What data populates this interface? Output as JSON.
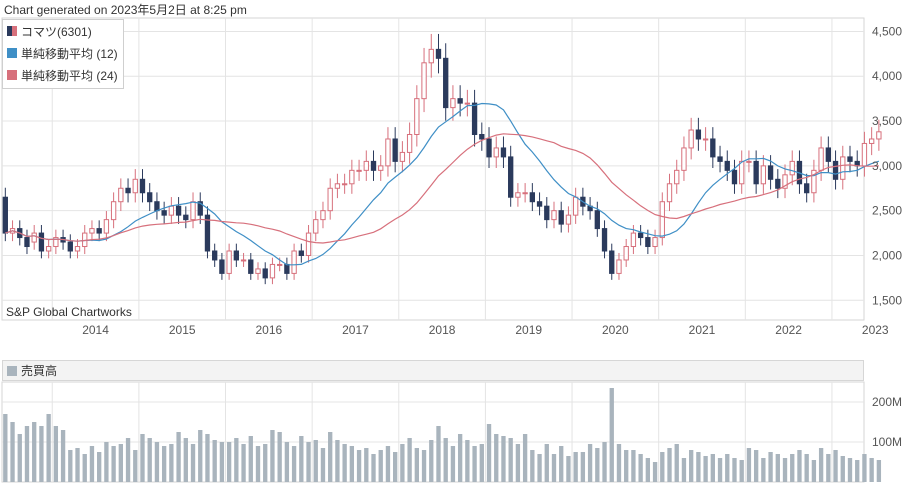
{
  "header": {
    "generated": "Chart generated on 2023年5月2日 at 8:25 pm"
  },
  "legend": {
    "items": [
      {
        "label": "コマツ(6301)",
        "color": "#d7707c"
      },
      {
        "label": "単純移動平均 (12)",
        "color": "#3f8fc6"
      },
      {
        "label": "単純移動平均 (24)",
        "color": "#d7707c"
      }
    ]
  },
  "credit": "S&P Global Chartworks",
  "volume_panel": {
    "title": "売買高",
    "color": "#a9b4bd"
  },
  "colors": {
    "up": "#d7707c",
    "down": "#2b3a5c",
    "ma12": "#3f8fc6",
    "ma24": "#d7707c",
    "volume": "#a9b4bd",
    "grid": "#e4e4e4"
  },
  "chart_data": [
    {
      "type": "candlestick",
      "title": "コマツ(6301)",
      "x_ticks": [
        "2014",
        "2015",
        "2016",
        "2017",
        "2018",
        "2019",
        "2020",
        "2021",
        "2022",
        "2023"
      ],
      "y_ticks": [
        "1,500",
        "2,000",
        "2,500",
        "3,000",
        "3,500",
        "4,000",
        "4,500"
      ],
      "ylim": [
        1280,
        4650
      ],
      "xlim": [
        2013.42,
        2023.37
      ],
      "grid": true,
      "series_ohlc_monthly_approx": {
        "start": "2013-06",
        "open": [
          2650,
          2250,
          2300,
          2200,
          2150,
          2250,
          2050,
          2100,
          2200,
          2150,
          2050,
          2100,
          2250,
          2300,
          2250,
          2400,
          2600,
          2750,
          2700,
          2850,
          2700,
          2600,
          2500,
          2450,
          2550,
          2450,
          2400,
          2600,
          2450,
          2050,
          1950,
          1800,
          2050,
          1950,
          1950,
          1800,
          1850,
          1750,
          1900,
          1900,
          1800,
          2050,
          2000,
          2250,
          2400,
          2500,
          2750,
          2800,
          2800,
          2950,
          2950,
          3050,
          2950,
          3000,
          3300,
          3050,
          3150,
          3350,
          3750,
          4150,
          4300,
          4200,
          3650,
          3750,
          3700,
          3700,
          3350,
          3300,
          3100,
          3200,
          3100,
          2650,
          2700,
          2700,
          2600,
          2550,
          2400,
          2500,
          2350,
          2450,
          2650,
          2550,
          2500,
          2300,
          2050,
          1800,
          1950,
          2100,
          2250,
          2200,
          2100,
          2200,
          2600,
          2800,
          2950,
          3200,
          3400,
          3300,
          3300,
          3100,
          3050,
          2950,
          2800,
          3050,
          3050,
          2800,
          3000,
          2850,
          2750,
          2900,
          3050,
          2800,
          2700,
          2950,
          3200,
          3050,
          2850,
          3100,
          3050,
          3000,
          3250,
          3300
        ],
        "close": [
          2250,
          2300,
          2200,
          2100,
          2250,
          2050,
          2100,
          2200,
          2150,
          2050,
          2100,
          2250,
          2300,
          2250,
          2400,
          2600,
          2750,
          2700,
          2850,
          2700,
          2600,
          2500,
          2450,
          2550,
          2450,
          2400,
          2600,
          2450,
          2050,
          1950,
          1800,
          2050,
          1950,
          1950,
          1800,
          1850,
          1750,
          1900,
          1900,
          1800,
          2050,
          2000,
          2250,
          2400,
          2500,
          2750,
          2800,
          2800,
          2950,
          2950,
          3050,
          2950,
          3000,
          3300,
          3050,
          3150,
          3350,
          3750,
          4150,
          4300,
          4200,
          3650,
          3750,
          3700,
          3700,
          3350,
          3300,
          3100,
          3200,
          3100,
          2650,
          2700,
          2700,
          2600,
          2550,
          2400,
          2500,
          2350,
          2450,
          2650,
          2550,
          2500,
          2300,
          2050,
          1800,
          1950,
          2100,
          2250,
          2200,
          2100,
          2200,
          2600,
          2800,
          2950,
          3200,
          3400,
          3300,
          3300,
          3100,
          3050,
          2950,
          2800,
          3050,
          3050,
          2800,
          3000,
          2850,
          2750,
          2900,
          3050,
          2800,
          2700,
          2950,
          3200,
          3050,
          2850,
          3100,
          3050,
          3000,
          3250,
          3300,
          3380
        ]
      },
      "moving_averages": [
        {
          "name": "単純移動平均 (12)",
          "period": 12
        },
        {
          "name": "単純移動平均 (24)",
          "period": 24
        }
      ]
    },
    {
      "type": "bar",
      "title": "売買高",
      "y_ticks": [
        "100M",
        "200M"
      ],
      "ylim": [
        0,
        250
      ],
      "values_approx_monthly": [
        170,
        150,
        120,
        140,
        150,
        140,
        170,
        140,
        130,
        80,
        85,
        70,
        90,
        75,
        100,
        90,
        95,
        110,
        80,
        120,
        110,
        100,
        90,
        95,
        125,
        110,
        95,
        130,
        120,
        105,
        100,
        100,
        110,
        95,
        115,
        90,
        95,
        130,
        125,
        100,
        90,
        115,
        100,
        105,
        85,
        125,
        105,
        95,
        90,
        80,
        85,
        70,
        80,
        90,
        75,
        95,
        110,
        85,
        80,
        105,
        140,
        110,
        90,
        120,
        105,
        90,
        95,
        145,
        120,
        115,
        110,
        95,
        120,
        80,
        70,
        95,
        70,
        90,
        65,
        75,
        75,
        95,
        85,
        100,
        235,
        95,
        80,
        80,
        70,
        60,
        50,
        75,
        85,
        95,
        60,
        80,
        75,
        65,
        70,
        60,
        70,
        60,
        55,
        85,
        80,
        60,
        75,
        70,
        60,
        70,
        80,
        70,
        55,
        85,
        70,
        80,
        65,
        60,
        55,
        70,
        60,
        55
      ]
    }
  ]
}
